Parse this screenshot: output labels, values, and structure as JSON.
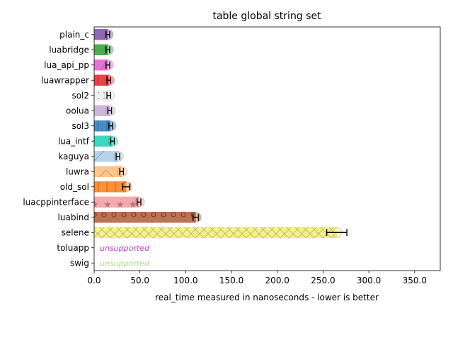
{
  "chart_data": {
    "type": "bar",
    "orientation": "horizontal",
    "title": "table global string set",
    "xlabel": "real_time measured in nanoseconds - lower is better",
    "xlim": [
      0,
      378
    ],
    "xticks": [
      "0.0",
      "50.0",
      "100.0",
      "150.0",
      "200.0",
      "250.0",
      "300.0",
      "350.0"
    ],
    "grid": false,
    "categories": [
      "plain_c",
      "luabridge",
      "lua_api_pp",
      "luawrapper",
      "sol2",
      "oolua",
      "sol3",
      "lua_intf",
      "kaguya",
      "luwra",
      "old_sol",
      "luacppinterface",
      "luabind",
      "selene",
      "toluapp",
      "swig"
    ],
    "values": [
      15,
      15,
      15,
      16,
      16,
      17,
      18,
      20,
      26,
      30,
      35,
      49,
      111,
      265,
      null,
      null
    ],
    "error": [
      2,
      2,
      2,
      2,
      2,
      2,
      2,
      2,
      2,
      2,
      4,
      2,
      3,
      11,
      null,
      null
    ],
    "colors": [
      "#8a5fb0",
      "#43a843",
      "#e56ccf",
      "#e8393e",
      "#f0f0f0",
      "#cbb1d8",
      "#3d86c4",
      "#2fd6bd",
      "#b2d2e8",
      "#fcc283",
      "#fb8a2a",
      "#f3a5a8",
      "#b86c48",
      "#f6f17c",
      "#c73ac7",
      "#aadc87"
    ],
    "unsupported_label": "unsupported"
  }
}
